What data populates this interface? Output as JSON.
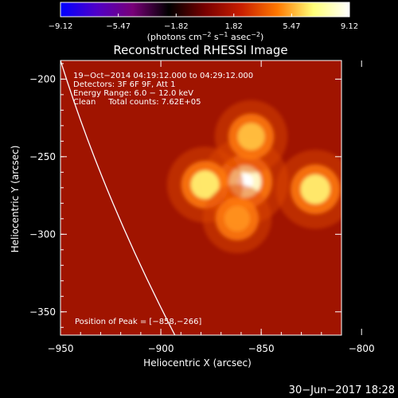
{
  "chart_data": {
    "type": "heatmap",
    "title": "Reconstructed RHESSI Image",
    "xlabel": "Heliocentric X (arcsec)",
    "ylabel": "Heliocentric Y (arcsec)",
    "xlim": [
      -950,
      -810
    ],
    "ylim": [
      -365,
      -188
    ],
    "x_ticks": [
      -950,
      -900,
      -850,
      -800
    ],
    "x_tick_labels": [
      "−950",
      "−900",
      "−850",
      "−800"
    ],
    "y_ticks": [
      -200,
      -250,
      -300,
      -350
    ],
    "y_tick_labels": [
      "−200",
      "−250",
      "−300",
      "−350"
    ],
    "colorbar": {
      "ticks": [
        -9.12,
        -5.47,
        -1.82,
        1.82,
        5.47,
        9.12
      ],
      "tick_labels": [
        "−9.12",
        "−5.47",
        "−1.82",
        "1.82",
        "5.47",
        "9.12"
      ],
      "label_parts": [
        "(photons cm",
        "−2",
        " s",
        "−1",
        " asec",
        "−2",
        ")"
      ],
      "colors": [
        "#0000ff",
        "#5000c8",
        "#780078",
        "#000000",
        "#780000",
        "#c81e00",
        "#ff7800",
        "#ffff78",
        "#ffffff"
      ]
    },
    "annotations": [
      "19−Oct−2014 04:19:12.000 to 04:29:12.000",
      "Detectors: 3F 6F 9F, Att 1",
      "Energy Range: 6.0 − 12.0 keV",
      "Clean     Total counts: 7.62E+05"
    ],
    "peak_label": "Position of Peak = [−858,−266]",
    "sources": [
      {
        "x": -858,
        "y": -266,
        "peak": 9.12
      },
      {
        "x": -823,
        "y": -271,
        "peak": 7.2
      },
      {
        "x": -878,
        "y": -268,
        "peak": 6.4
      },
      {
        "x": -855,
        "y": -237,
        "peak": 5.6
      },
      {
        "x": -862,
        "y": -290,
        "peak": 4.6
      }
    ],
    "limb_curve": [
      [
        -950,
        -188
      ],
      [
        -935,
        -250
      ],
      [
        -915,
        -310
      ],
      [
        -893,
        -365
      ]
    ]
  },
  "footer_date": "30−Jun−2017 18:28"
}
